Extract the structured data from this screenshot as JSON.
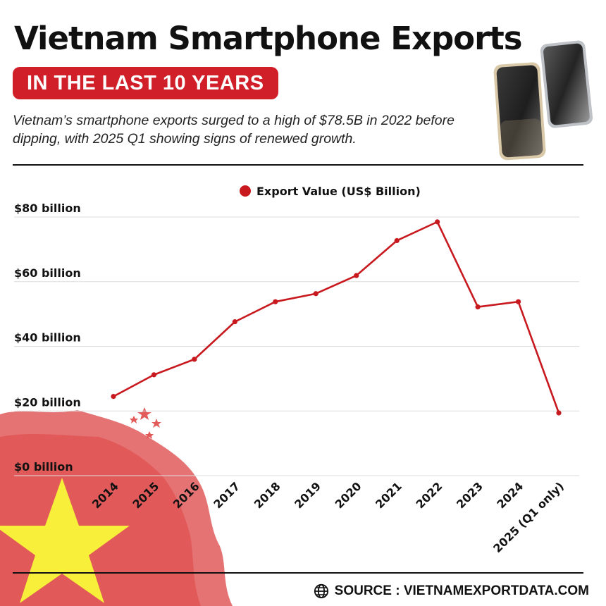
{
  "header": {
    "title": "Vietnam Smartphone Exports",
    "badge": "IN THE LAST 10 YEARS",
    "subtitle": "Vietnam’s smartphone exports surged to a high of $78.5B in 2022 before dipping, with 2025 Q1 showing signs of renewed growth."
  },
  "footer": {
    "source_label": "SOURCE : VIETNAMEXPORTDATA.COM",
    "icon": "globe-icon"
  },
  "decor": {
    "phone_image": "smartphones",
    "flag_image": "vietnam-flag"
  },
  "colors": {
    "accent": "#d11f2a",
    "line": "#c8191f",
    "flag_red": "#e25a5a",
    "flag_star": "#f7ef3a",
    "grid": "#dddddd"
  },
  "chart_data": {
    "type": "line",
    "categories": [
      "2014",
      "2015",
      "2016",
      "2017",
      "2018",
      "2019",
      "2020",
      "2021",
      "2022",
      "2023",
      "2024",
      "2025 (Q1 only)"
    ],
    "series": [
      {
        "name": "Export Value (US$ Billion)",
        "values": [
          24.5,
          31.2,
          36.0,
          47.6,
          53.8,
          56.3,
          61.9,
          72.7,
          78.5,
          52.2,
          53.8,
          19.4
        ],
        "color": "#c8191f"
      }
    ],
    "yticks": [
      {
        "value": 0,
        "label": "$0 billion"
      },
      {
        "value": 20,
        "label": "$20 billion"
      },
      {
        "value": 40,
        "label": "$40 billion"
      },
      {
        "value": 60,
        "label": "$60 billion"
      },
      {
        "value": 80,
        "label": "$80 billion"
      }
    ],
    "ylim": [
      0,
      80
    ],
    "grid": true,
    "legend_position": "top-center"
  }
}
